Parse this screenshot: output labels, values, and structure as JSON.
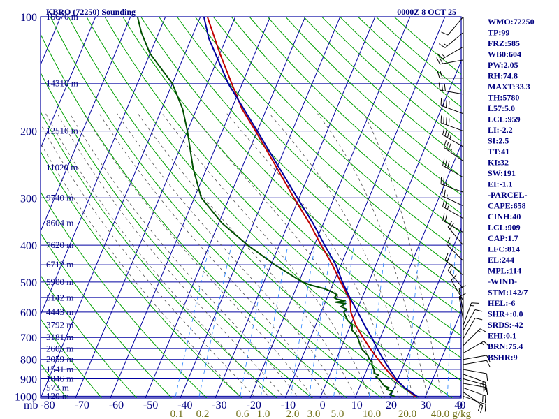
{
  "chart_data": {
    "type": "line",
    "title": "KBRO (72250) Sounding",
    "valid_time": "0000Z  8 OCT 25",
    "pressure_label": "mb",
    "mixing_ratio_unit": "g/kg",
    "pressure_levels": [
      100,
      200,
      300,
      400,
      500,
      600,
      700,
      800,
      900,
      1000
    ],
    "pressure_range": [
      100,
      1050
    ],
    "temperature_ticks": [
      -80,
      -70,
      -60,
      -50,
      -40,
      -30,
      -20,
      -10,
      0,
      10,
      20,
      30,
      40,
      0
    ],
    "temperature_range": [
      -80,
      40
    ],
    "height_labels": [
      {
        "p": 100,
        "label": "16670 m"
      },
      {
        "p": 150,
        "label": "14310 m"
      },
      {
        "p": 200,
        "label": "12510 m"
      },
      {
        "p": 250,
        "label": "11020 m"
      },
      {
        "p": 300,
        "label": "9740 m"
      },
      {
        "p": 350,
        "label": "8604 m"
      },
      {
        "p": 400,
        "label": "7620 m"
      },
      {
        "p": 450,
        "label": "6712 m"
      },
      {
        "p": 500,
        "label": "5900 m"
      },
      {
        "p": 550,
        "label": "5142 m"
      },
      {
        "p": 600,
        "label": "4443 m"
      },
      {
        "p": 650,
        "label": "3792 m"
      },
      {
        "p": 700,
        "label": "3181 m"
      },
      {
        "p": 750,
        "label": "2605 m"
      },
      {
        "p": 800,
        "label": "2059 m"
      },
      {
        "p": 850,
        "label": "1541 m"
      },
      {
        "p": 900,
        "label": "1046 m"
      },
      {
        "p": 950,
        "label": "573 m"
      },
      {
        "p": 1000,
        "label": "120 m"
      }
    ],
    "mixing_ratio_labels": [
      "0.1",
      "0.2",
      "0.6",
      "1.0",
      "2.0",
      "3.0",
      "5.0",
      "10.0",
      "20.0",
      "40.0"
    ],
    "mixing_ratio_values": [
      0.1,
      0.2,
      0.6,
      1.0,
      2.0,
      3.0,
      5.0,
      10.0,
      20.0,
      40.0
    ],
    "series": [
      {
        "name": "Temperature",
        "color": "#c00000",
        "points": [
          [
            1005,
            27.5
          ],
          [
            1000,
            27
          ],
          [
            950,
            23
          ],
          [
            900,
            19
          ],
          [
            850,
            15.5
          ],
          [
            800,
            12
          ],
          [
            750,
            8.5
          ],
          [
            700,
            5
          ],
          [
            650,
            1.5
          ],
          [
            600,
            -1.5
          ],
          [
            560,
            -3
          ],
          [
            500,
            -8
          ],
          [
            450,
            -12.5
          ],
          [
            400,
            -18
          ],
          [
            350,
            -24
          ],
          [
            300,
            -31.5
          ],
          [
            250,
            -40
          ],
          [
            200,
            -50.5
          ],
          [
            175,
            -57
          ],
          [
            150,
            -63
          ],
          [
            125,
            -70
          ],
          [
            100,
            -78
          ]
        ]
      },
      {
        "name": "Dewpoint",
        "color": "#005000",
        "points": [
          [
            1005,
            21.5
          ],
          [
            1000,
            21
          ],
          [
            990,
            19.5
          ],
          [
            970,
            20
          ],
          [
            960,
            18
          ],
          [
            950,
            18.5
          ],
          [
            940,
            17
          ],
          [
            925,
            16
          ],
          [
            915,
            15.5
          ],
          [
            900,
            14.5
          ],
          [
            890,
            13.5
          ],
          [
            880,
            14
          ],
          [
            870,
            12.5
          ],
          [
            850,
            12
          ],
          [
            830,
            11
          ],
          [
            810,
            10.5
          ],
          [
            800,
            9.5
          ],
          [
            780,
            8.5
          ],
          [
            750,
            6
          ],
          [
            720,
            4.5
          ],
          [
            700,
            3.5
          ],
          [
            685,
            2.5
          ],
          [
            670,
            1
          ],
          [
            650,
            0.5
          ],
          [
            630,
            -1.5
          ],
          [
            615,
            -2.5
          ],
          [
            600,
            -3.5
          ],
          [
            590,
            -3
          ],
          [
            580,
            -5
          ],
          [
            570,
            -4
          ],
          [
            565,
            -7
          ],
          [
            560,
            -4.5
          ],
          [
            555,
            -7
          ],
          [
            550,
            -8
          ],
          [
            540,
            -7.5
          ],
          [
            530,
            -9.5
          ],
          [
            520,
            -12
          ],
          [
            510,
            -16
          ],
          [
            500,
            -19
          ],
          [
            450,
            -29
          ],
          [
            400,
            -39
          ],
          [
            350,
            -49
          ],
          [
            300,
            -58
          ],
          [
            250,
            -64
          ],
          [
            200,
            -70
          ],
          [
            175,
            -74
          ],
          [
            150,
            -80
          ],
          [
            125,
            -90
          ],
          [
            110,
            -95
          ],
          [
            100,
            -98
          ]
        ]
      },
      {
        "name": "Parcel path",
        "color": "#0000a0",
        "points": [
          [
            1005,
            28
          ],
          [
            1000,
            27.5
          ],
          [
            950,
            23
          ],
          [
            909,
            20
          ],
          [
            850,
            16.5
          ],
          [
            800,
            13.5
          ],
          [
            750,
            10.5
          ],
          [
            700,
            7.5
          ],
          [
            650,
            4
          ],
          [
            600,
            0.5
          ],
          [
            550,
            -3.5
          ],
          [
            500,
            -7.5
          ],
          [
            450,
            -11.5
          ],
          [
            400,
            -17
          ],
          [
            350,
            -23
          ],
          [
            300,
            -30.5
          ],
          [
            244,
            -40.5
          ],
          [
            200,
            -50
          ],
          [
            150,
            -64
          ],
          [
            114,
            -75
          ],
          [
            100,
            -79
          ]
        ]
      }
    ],
    "wind_barbs": [
      {
        "p": 1000,
        "dir": 110,
        "spd": 10
      },
      {
        "p": 975,
        "dir": 125,
        "spd": 20
      },
      {
        "p": 950,
        "dir": 110,
        "spd": 20
      },
      {
        "p": 925,
        "dir": 100,
        "spd": 15
      },
      {
        "p": 900,
        "dir": 105,
        "spd": 25
      },
      {
        "p": 875,
        "dir": 110,
        "spd": 15
      },
      {
        "p": 850,
        "dir": 100,
        "spd": 10
      },
      {
        "p": 825,
        "dir": 80,
        "spd": 10
      },
      {
        "p": 800,
        "dir": 80,
        "spd": 10
      },
      {
        "p": 770,
        "dir": 60,
        "spd": 15
      },
      {
        "p": 735,
        "dir": 45,
        "spd": 15
      },
      {
        "p": 705,
        "dir": 30,
        "spd": 10
      },
      {
        "p": 670,
        "dir": 30,
        "spd": 10
      },
      {
        "p": 650,
        "dir": 20,
        "spd": 15
      },
      {
        "p": 630,
        "dir": 350,
        "spd": 10
      },
      {
        "p": 600,
        "dir": 350,
        "spd": 10
      },
      {
        "p": 560,
        "dir": 330,
        "spd": 10
      },
      {
        "p": 520,
        "dir": 320,
        "spd": 15
      },
      {
        "p": 480,
        "dir": 310,
        "spd": 15
      },
      {
        "p": 440,
        "dir": 315,
        "spd": 15
      },
      {
        "p": 400,
        "dir": 320,
        "spd": 20
      },
      {
        "p": 370,
        "dir": 300,
        "spd": 20
      },
      {
        "p": 340,
        "dir": 300,
        "spd": 25
      },
      {
        "p": 315,
        "dir": 295,
        "spd": 25
      },
      {
        "p": 290,
        "dir": 290,
        "spd": 25
      },
      {
        "p": 265,
        "dir": 300,
        "spd": 30
      },
      {
        "p": 240,
        "dir": 305,
        "spd": 35
      },
      {
        "p": 220,
        "dir": 300,
        "spd": 35
      },
      {
        "p": 200,
        "dir": 290,
        "spd": 40
      },
      {
        "p": 180,
        "dir": 290,
        "spd": 40
      },
      {
        "p": 160,
        "dir": 280,
        "spd": 30
      },
      {
        "p": 145,
        "dir": 270,
        "spd": 20
      },
      {
        "p": 130,
        "dir": 260,
        "spd": 20
      },
      {
        "p": 120,
        "dir": 240,
        "spd": 15
      },
      {
        "p": 110,
        "dir": 230,
        "spd": 15
      },
      {
        "p": 100,
        "dir": 220,
        "spd": 10
      }
    ]
  },
  "indices": [
    "WMO:72250",
    "TP:99",
    "FRZ:585",
    "WB0:604",
    "PW:2.05",
    "RH:74.8",
    "MAXT:33.3",
    "TH:5780",
    "L57:5.0",
    "LCL:959",
    "LI:-2.2",
    "SI:2.5",
    "TT:41",
    "KI:32",
    "SW:191",
    "EI:-1.1",
    "-PARCEL-",
    "CAPE:658",
    "CINH:40",
    "LCL:909",
    "CAP:1.7",
    "LFC:814",
    "EL:244",
    "MPL:114",
    "-WIND-",
    "STM:142/7",
    "HEL:-6",
    "SHR+:0.0",
    "SRDS:-42",
    "EHI:0.1",
    "BRN:75.4",
    "BSHR:9"
  ],
  "colors": {
    "grid": "#0000a0",
    "dry_adiabat": "#00a000",
    "moist_adiabat": "#505050",
    "mixing_ratio": "#2080ff",
    "temperature": "#c00000",
    "dewpoint": "#005000",
    "parcel": "#0000a0",
    "text": "#000080",
    "mixing_label": "#6e6e14"
  }
}
